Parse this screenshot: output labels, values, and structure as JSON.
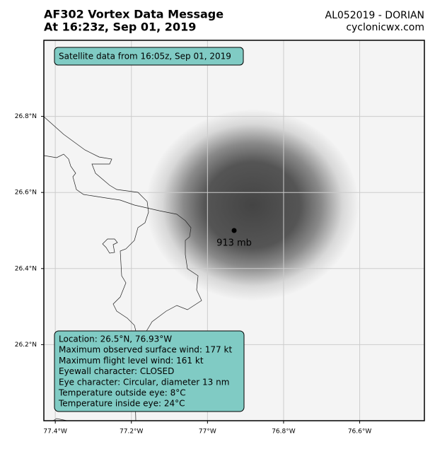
{
  "header": {
    "title": "AF302 Vortex Data Message",
    "subtitle": "At 16:23z, Sep 01, 2019",
    "storm": "AL052019 - DORIAN",
    "source": "cyclonicwx.com"
  },
  "map": {
    "xlim": [
      -77.43,
      -76.43
    ],
    "ylim": [
      26.0,
      27.0
    ],
    "xticks": [
      {
        "value": -77.4,
        "label": "77.4°W"
      },
      {
        "value": -77.2,
        "label": "77.2°W"
      },
      {
        "value": -77.0,
        "label": "77°W"
      },
      {
        "value": -76.8,
        "label": "76.8°W"
      },
      {
        "value": -76.6,
        "label": "76.6°W"
      }
    ],
    "yticks": [
      {
        "value": 26.2,
        "label": "26.2°N"
      },
      {
        "value": 26.4,
        "label": "26.4°N"
      },
      {
        "value": 26.6,
        "label": "26.6°N"
      },
      {
        "value": 26.8,
        "label": "26.8°N"
      }
    ],
    "grid": true,
    "satellite_note": "Satellite data from 16:05z, Sep 01, 2019",
    "center": {
      "lon": -76.93,
      "lat": 26.5,
      "label": "913 mb"
    }
  },
  "info": {
    "lines": [
      "Location: 26.5°N, 76.93°W",
      "Maximum observed surface wind: 177 kt",
      "Maximum flight level wind: 161 kt",
      "Eyewall character: CLOSED",
      "Eye character: Circular, diameter 13 nm",
      "Temperature outside eye: 8°C",
      "Temperature inside eye: 24°C"
    ]
  }
}
